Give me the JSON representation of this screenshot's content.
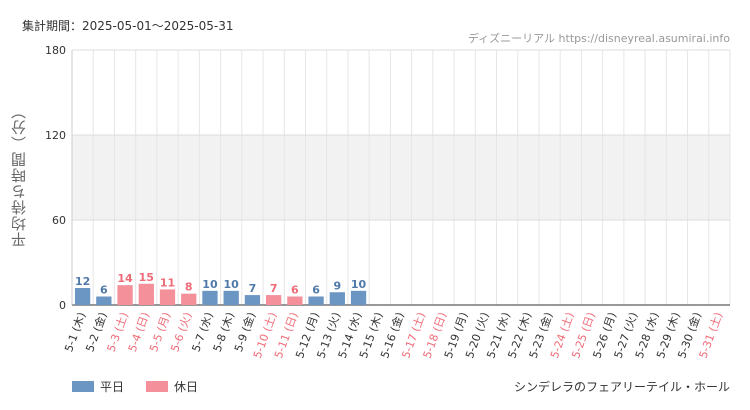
{
  "header": {
    "period": "集計期間：2025-05-01～2025-05-31",
    "credit": "ディズニーリアル https://disneyreal.asumirai.info"
  },
  "footer": {
    "attraction": "シンデレラのフェアリーテイル・ホール"
  },
  "colors": {
    "weekday": "#6b96c4",
    "holiday": "#f4909a",
    "weekday_text": "#4f79a8",
    "holiday_text": "#f06b78"
  },
  "chart_data": {
    "type": "bar",
    "ylabel": "平均待ち時間（分）",
    "ylim": [
      0,
      180
    ],
    "yticks": [
      0,
      60,
      120,
      180
    ],
    "grid": true,
    "band": [
      60,
      120
    ],
    "legend": {
      "position": "bottom-left",
      "entries": [
        {
          "name": "平日",
          "key": "weekday"
        },
        {
          "name": "休日",
          "key": "holiday"
        }
      ]
    },
    "categories": [
      "5-1 (木)",
      "5-2 (金)",
      "5-3 (土)",
      "5-4 (日)",
      "5-5 (月)",
      "5-6 (火)",
      "5-7 (水)",
      "5-8 (木)",
      "5-9 (金)",
      "5-10 (土)",
      "5-11 (日)",
      "5-12 (月)",
      "5-13 (火)",
      "5-14 (水)",
      "5-15 (木)",
      "5-16 (金)",
      "5-17 (土)",
      "5-18 (日)",
      "5-19 (月)",
      "5-20 (火)",
      "5-21 (水)",
      "5-22 (木)",
      "5-23 (金)",
      "5-24 (土)",
      "5-25 (日)",
      "5-26 (月)",
      "5-27 (火)",
      "5-28 (水)",
      "5-29 (木)",
      "5-30 (金)",
      "5-31 (土)"
    ],
    "types": [
      "weekday",
      "weekday",
      "holiday",
      "holiday",
      "holiday",
      "holiday",
      "weekday",
      "weekday",
      "weekday",
      "holiday",
      "holiday",
      "weekday",
      "weekday",
      "weekday",
      "weekday",
      "weekday",
      "holiday",
      "holiday",
      "weekday",
      "weekday",
      "weekday",
      "weekday",
      "weekday",
      "holiday",
      "holiday",
      "weekday",
      "weekday",
      "weekday",
      "weekday",
      "weekday",
      "holiday"
    ],
    "values": [
      12,
      6,
      14,
      15,
      11,
      8,
      10,
      10,
      7,
      7,
      6,
      6,
      9,
      10,
      null,
      null,
      null,
      null,
      null,
      null,
      null,
      null,
      null,
      null,
      null,
      null,
      null,
      null,
      null,
      null,
      null
    ]
  }
}
